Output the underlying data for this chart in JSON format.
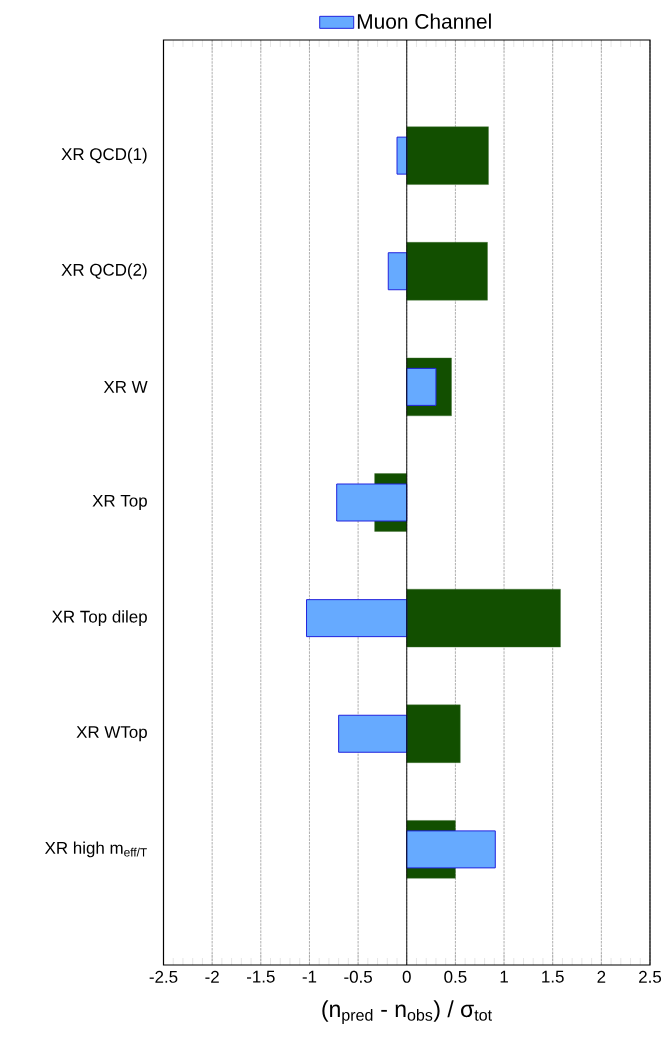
{
  "chart_data": {
    "type": "bar",
    "orientation": "horizontal",
    "xlabel": "(n$_{pred}$ - n$_{obs}$) / σ$_{tot}$",
    "categories": [
      "XR QCD(1)",
      "XR QCD(2)",
      "XR W",
      "XR Top",
      "XR Top dilep",
      "XR WTop",
      "XR high m$_{eff/T}$"
    ],
    "series": [
      {
        "color": "#124f00",
        "values": [
          0.84,
          0.83,
          0.46,
          -0.33,
          1.58,
          0.55,
          0.5
        ]
      },
      {
        "name": "Muon Channel",
        "color": "#66aaff",
        "values": [
          -0.1,
          -0.19,
          0.3,
          -0.72,
          -1.03,
          -0.7,
          0.91
        ]
      }
    ],
    "xlim": [
      -2.5,
      2.5
    ],
    "xticks": [
      -2.5,
      -2,
      -1.5,
      -1,
      -0.5,
      0,
      0.5,
      1,
      1.5,
      2,
      2.5
    ],
    "grid": "x",
    "legend": "top",
    "ref_lines": [
      {
        "axis": "x",
        "value": 0,
        "color": "#000000",
        "line_style": "solid"
      }
    ]
  }
}
